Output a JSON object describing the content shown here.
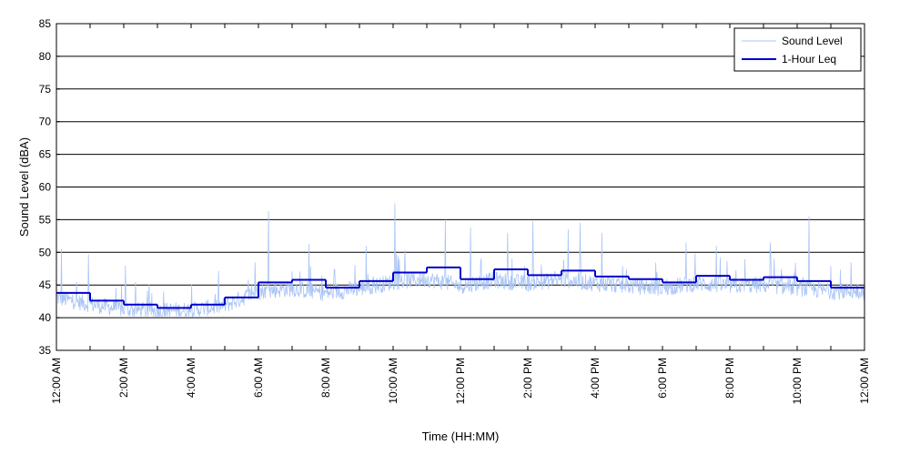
{
  "chart_data": {
    "type": "line",
    "title": "",
    "xlabel": "Time (HH:MM)",
    "ylabel": "Sound Level (dBA)",
    "ylim": [
      35,
      85
    ],
    "yticks": [
      35,
      40,
      45,
      50,
      55,
      60,
      65,
      70,
      75,
      80,
      85
    ],
    "xlim_hours": [
      0,
      24
    ],
    "xtick_hours": [
      0,
      2,
      4,
      6,
      8,
      10,
      12,
      14,
      16,
      18,
      20,
      22,
      24
    ],
    "xtick_labels": [
      "12:00 AM",
      "2:00 AM",
      "4:00 AM",
      "6:00 AM",
      "8:00 AM",
      "10:00 AM",
      "12:00 PM",
      "2:00 PM",
      "4:00 PM",
      "6:00 PM",
      "8:00 PM",
      "10:00 PM",
      "12:00 AM"
    ],
    "grid": "horizontal",
    "legend_position": "top-right",
    "series": [
      {
        "name": "Sound Level",
        "color": "#a9c4f5",
        "hourly_base_values": [
          42.8,
          41.8,
          41.0,
          40.8,
          40.9,
          41.6,
          43.8,
          44.2,
          43.5,
          44.2,
          45.2,
          45.7,
          44.6,
          45.5,
          45.0,
          45.6,
          45.0,
          44.6,
          44.3,
          45.0,
          44.6,
          44.8,
          44.3,
          43.8
        ],
        "peaks": [
          {
            "hour": 0.15,
            "value": 50.5
          },
          {
            "hour": 0.95,
            "value": 49.7
          },
          {
            "hour": 2.05,
            "value": 48.0
          },
          {
            "hour": 5.9,
            "value": 48.5
          },
          {
            "hour": 6.3,
            "value": 56.3
          },
          {
            "hour": 7.5,
            "value": 51.3
          },
          {
            "hour": 9.2,
            "value": 51.0
          },
          {
            "hour": 10.05,
            "value": 57.5
          },
          {
            "hour": 11.55,
            "value": 55.0
          },
          {
            "hour": 12.3,
            "value": 53.8
          },
          {
            "hour": 13.4,
            "value": 53.0
          },
          {
            "hour": 14.15,
            "value": 54.8
          },
          {
            "hour": 15.2,
            "value": 53.5
          },
          {
            "hour": 15.55,
            "value": 54.5
          },
          {
            "hour": 16.2,
            "value": 53.0
          },
          {
            "hour": 18.7,
            "value": 51.5
          },
          {
            "hour": 19.6,
            "value": 51.0
          },
          {
            "hour": 21.2,
            "value": 51.5
          },
          {
            "hour": 22.35,
            "value": 55.5
          },
          {
            "hour": 23.6,
            "value": 48.5
          }
        ]
      },
      {
        "name": "1-Hour Leq",
        "color": "#0000cc",
        "hours": [
          0,
          1,
          2,
          3,
          4,
          5,
          6,
          7,
          8,
          9,
          10,
          11,
          12,
          13,
          14,
          15,
          16,
          17,
          18,
          19,
          20,
          21,
          22,
          23
        ],
        "values": [
          43.8,
          42.6,
          42.0,
          41.5,
          42.0,
          43.1,
          45.4,
          45.8,
          44.6,
          45.6,
          46.9,
          47.7,
          45.9,
          47.4,
          46.5,
          47.2,
          46.3,
          45.9,
          45.4,
          46.4,
          45.8,
          46.2,
          45.6,
          44.6
        ]
      }
    ]
  }
}
